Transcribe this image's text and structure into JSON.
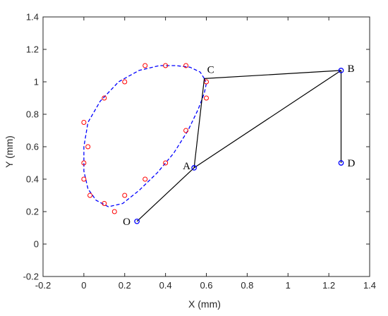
{
  "chart_data": {
    "type": "scatter",
    "title": "",
    "xlabel": "X (mm)",
    "ylabel": "Y (mm)",
    "xlim": [
      -0.2,
      1.4
    ],
    "ylim": [
      -0.2,
      1.4
    ],
    "xticks": [
      -0.2,
      0,
      0.2,
      0.4,
      0.6,
      0.8,
      1,
      1.2,
      1.4
    ],
    "yticks": [
      -0.2,
      0,
      0.2,
      0.4,
      0.6,
      0.8,
      1,
      1.2,
      1.4
    ],
    "xtick_labels": [
      "-0.2",
      "0",
      "0.2",
      "0.4",
      "0.6",
      "0.8",
      "1",
      "1.2",
      "1.4"
    ],
    "ytick_labels": [
      "-0.2",
      "0",
      "0.2",
      "0.4",
      "0.6",
      "0.8",
      "1",
      "1.2",
      "1.4"
    ],
    "grid": false,
    "joints": [
      {
        "name": "O",
        "x": 0.26,
        "y": 0.14
      },
      {
        "name": "A",
        "x": 0.54,
        "y": 0.47
      },
      {
        "name": "B",
        "x": 1.26,
        "y": 1.07
      },
      {
        "name": "C",
        "x": 0.59,
        "y": 1.02
      },
      {
        "name": "D",
        "x": 1.26,
        "y": 0.5
      }
    ],
    "links": [
      [
        "O",
        "A"
      ],
      [
        "A",
        "B"
      ],
      [
        "B",
        "C"
      ],
      [
        "A",
        "C"
      ],
      [
        "B",
        "D"
      ]
    ],
    "target_points": [
      {
        "x": 0.0,
        "y": 0.75
      },
      {
        "x": 0.02,
        "y": 0.6
      },
      {
        "x": 0.0,
        "y": 0.5
      },
      {
        "x": 0.0,
        "y": 0.4
      },
      {
        "x": 0.03,
        "y": 0.3
      },
      {
        "x": 0.1,
        "y": 0.25
      },
      {
        "x": 0.15,
        "y": 0.2
      },
      {
        "x": 0.2,
        "y": 0.3
      },
      {
        "x": 0.3,
        "y": 0.4
      },
      {
        "x": 0.4,
        "y": 0.5
      },
      {
        "x": 0.5,
        "y": 0.7
      },
      {
        "x": 0.6,
        "y": 0.9
      },
      {
        "x": 0.6,
        "y": 1.0
      },
      {
        "x": 0.5,
        "y": 1.1
      },
      {
        "x": 0.4,
        "y": 1.1
      },
      {
        "x": 0.3,
        "y": 1.1
      },
      {
        "x": 0.2,
        "y": 1.0
      },
      {
        "x": 0.1,
        "y": 0.9
      }
    ],
    "coupler_curve": [
      {
        "x": 0.59,
        "y": 1.02
      },
      {
        "x": 0.57,
        "y": 1.06
      },
      {
        "x": 0.52,
        "y": 1.09
      },
      {
        "x": 0.45,
        "y": 1.1
      },
      {
        "x": 0.37,
        "y": 1.1
      },
      {
        "x": 0.27,
        "y": 1.07
      },
      {
        "x": 0.17,
        "y": 1.0
      },
      {
        "x": 0.08,
        "y": 0.88
      },
      {
        "x": 0.02,
        "y": 0.75
      },
      {
        "x": 0.0,
        "y": 0.6
      },
      {
        "x": 0.0,
        "y": 0.45
      },
      {
        "x": 0.02,
        "y": 0.34
      },
      {
        "x": 0.06,
        "y": 0.27
      },
      {
        "x": 0.12,
        "y": 0.23
      },
      {
        "x": 0.19,
        "y": 0.25
      },
      {
        "x": 0.27,
        "y": 0.33
      },
      {
        "x": 0.36,
        "y": 0.44
      },
      {
        "x": 0.44,
        "y": 0.56
      },
      {
        "x": 0.51,
        "y": 0.7
      },
      {
        "x": 0.56,
        "y": 0.83
      },
      {
        "x": 0.59,
        "y": 0.93
      },
      {
        "x": 0.6,
        "y": 0.99
      },
      {
        "x": 0.59,
        "y": 1.02
      }
    ],
    "colors": {
      "links": "#000000",
      "joints": "#0000ff",
      "curve": "#0000ff",
      "targets": "#ff0000",
      "axes": "#262626"
    }
  }
}
